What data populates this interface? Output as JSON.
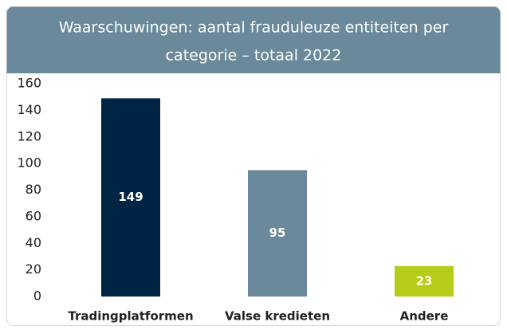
{
  "chart_data": {
    "type": "bar",
    "title": [
      "Waarschuwingen: aantal frauduleuze entiteiten per",
      "categorie – totaal 2022"
    ],
    "categories": [
      "Tradingplatformen",
      "Valse kredieten",
      "Andere"
    ],
    "values": [
      149,
      95,
      23
    ],
    "colors": [
      "#002544",
      "#6a899a",
      "#b7cc1a"
    ],
    "ylim": [
      0,
      160
    ],
    "yticks": [
      0,
      20,
      40,
      60,
      80,
      100,
      120,
      140,
      160
    ],
    "grid": false
  }
}
